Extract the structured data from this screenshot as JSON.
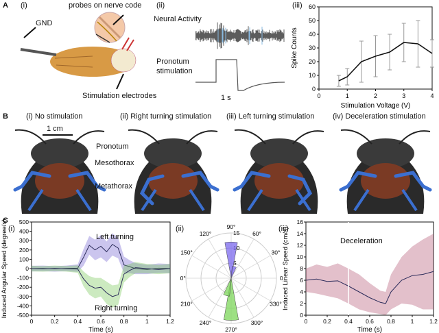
{
  "panelA": {
    "label": "A",
    "i": {
      "sublabel": "(i)",
      "probes_label": "probes on nerve code",
      "gnd_label": "GND",
      "electrodes_label": "Stimulation electrodes"
    },
    "ii": {
      "sublabel": "(ii)",
      "neural_label": "Neural Activity",
      "pronotum_label": "Pronotum",
      "stim_label": "stimulation",
      "scale_label": "1 s"
    },
    "iii": {
      "sublabel": "(iii)",
      "chart_data": {
        "type": "line",
        "xlabel": "Stimulation Voltage (V)",
        "ylabel": "Spike Counts",
        "xlim": [
          0,
          4
        ],
        "ylim": [
          0,
          60
        ],
        "xticks": [
          "0",
          "1",
          "2",
          "3",
          "4"
        ],
        "yticks": [
          "0",
          "10",
          "20",
          "30",
          "40",
          "50",
          "60"
        ],
        "x": [
          0.7,
          1.0,
          1.5,
          2.0,
          2.5,
          3.0,
          3.5,
          4.0
        ],
        "y": [
          6,
          9,
          20,
          24,
          27,
          34,
          33,
          26
        ],
        "err": [
          4,
          6,
          15,
          15,
          13,
          14,
          17,
          10
        ]
      }
    }
  },
  "panelB": {
    "label": "B",
    "scale_label": "1 cm",
    "pronotum_label": "Pronotum",
    "mesothorax_label": "Mesothorax",
    "metathorax_label": "Metathorax",
    "images": [
      {
        "title": "(i) No stimulation"
      },
      {
        "title": "(ii) Right turning stimulation"
      },
      {
        "title": "(iii) Left turning stimulation"
      },
      {
        "title": "(iv) Deceleration stimulation"
      }
    ]
  },
  "panelC": {
    "label": "C",
    "i": {
      "sublabel": "(i)",
      "left_label": "Left turning",
      "right_label": "Right turning",
      "chart_data": {
        "type": "area",
        "xlabel": "Time (s)",
        "ylabel": "Induced Angular Speed (degree/s)",
        "xlim": [
          0,
          1.2
        ],
        "ylim": [
          -500,
          500
        ],
        "xticks": [
          "0",
          "0.2",
          "0.4",
          "0.6",
          "0.8",
          "1",
          "1.2"
        ],
        "yticks": [
          "-500",
          "-400",
          "-300",
          "-200",
          "-100",
          "0",
          "100",
          "200",
          "300",
          "400",
          "500"
        ],
        "x": [
          0,
          0.1,
          0.2,
          0.3,
          0.4,
          0.45,
          0.5,
          0.55,
          0.6,
          0.65,
          0.7,
          0.75,
          0.8,
          0.85,
          0.9,
          1.0,
          1.1,
          1.2
        ],
        "series": [
          {
            "name": "Left turning",
            "color": "#6a5acd",
            "values": [
              0,
              2,
              -3,
              2,
              5,
              120,
              250,
              200,
              240,
              180,
              260,
              220,
              40,
              20,
              0,
              -10,
              5,
              0
            ],
            "band": [
              30,
              30,
              30,
              30,
              40,
              90,
              100,
              110,
              120,
              110,
              120,
              110,
              90,
              70,
              60,
              50,
              50,
              50
            ]
          },
          {
            "name": "Right turning",
            "color": "#6cc24a",
            "values": [
              0,
              -3,
              2,
              -2,
              -5,
              -110,
              -180,
              -210,
              -200,
              -260,
              -300,
              -280,
              -60,
              -20,
              10,
              0,
              -10,
              0
            ],
            "band": [
              30,
              30,
              30,
              30,
              40,
              80,
              100,
              110,
              100,
              120,
              120,
              110,
              90,
              70,
              60,
              50,
              50,
              50
            ]
          }
        ]
      }
    },
    "ii": {
      "sublabel": "(ii)",
      "chart_data": {
        "type": "polar-histogram",
        "angle_labels": [
          "90°",
          "60°",
          "30°",
          "0°",
          "330°",
          "300°",
          "270°",
          "240°",
          "210°",
          "180°",
          "150°",
          "120°"
        ],
        "radial_ticks": [
          "5",
          "10",
          "15"
        ],
        "bins": [
          {
            "name": "Left turning",
            "center_deg": 90,
            "width_deg": 20,
            "value": 12,
            "color": "#7b68ee"
          },
          {
            "name": "Left turning",
            "center_deg": 75,
            "width_deg": 20,
            "value": 4,
            "color": "#7b68ee"
          },
          {
            "name": "Right turning",
            "center_deg": 270,
            "width_deg": 20,
            "value": 14,
            "color": "#7cd65a"
          },
          {
            "name": "Right turning",
            "center_deg": 255,
            "width_deg": 20,
            "value": 6,
            "color": "#7cd65a"
          }
        ]
      }
    },
    "iii": {
      "sublabel": "(iii)",
      "decel_label": "Deceleration",
      "chart_data": {
        "type": "area",
        "xlabel": "Time (s)",
        "ylabel": "Induced Linear Speed (cm/s)",
        "xlim": [
          0,
          1.2
        ],
        "ylim": [
          0,
          16
        ],
        "xticks": [
          "0",
          "0.2",
          "0.4",
          "0.6",
          "0.8",
          "1",
          "1.2"
        ],
        "yticks": [
          "0",
          "2",
          "4",
          "6",
          "8",
          "10",
          "12",
          "14",
          "16"
        ],
        "x": [
          0,
          0.1,
          0.2,
          0.3,
          0.4,
          0.5,
          0.6,
          0.7,
          0.75,
          0.8,
          0.9,
          1.0,
          1.1,
          1.2
        ],
        "series": [
          {
            "name": "Deceleration",
            "color": "#b04a6a",
            "values": [
              6,
              6.2,
              5.8,
              5.9,
              5,
              4,
              3,
              2.2,
              2,
              4,
              6,
              6.8,
              7,
              7.5
            ],
            "band": [
              2,
              2.5,
              2.5,
              3,
              3,
              3,
              2.5,
              2,
              2,
              3,
              4,
              5,
              6,
              6.5
            ]
          }
        ]
      }
    }
  }
}
